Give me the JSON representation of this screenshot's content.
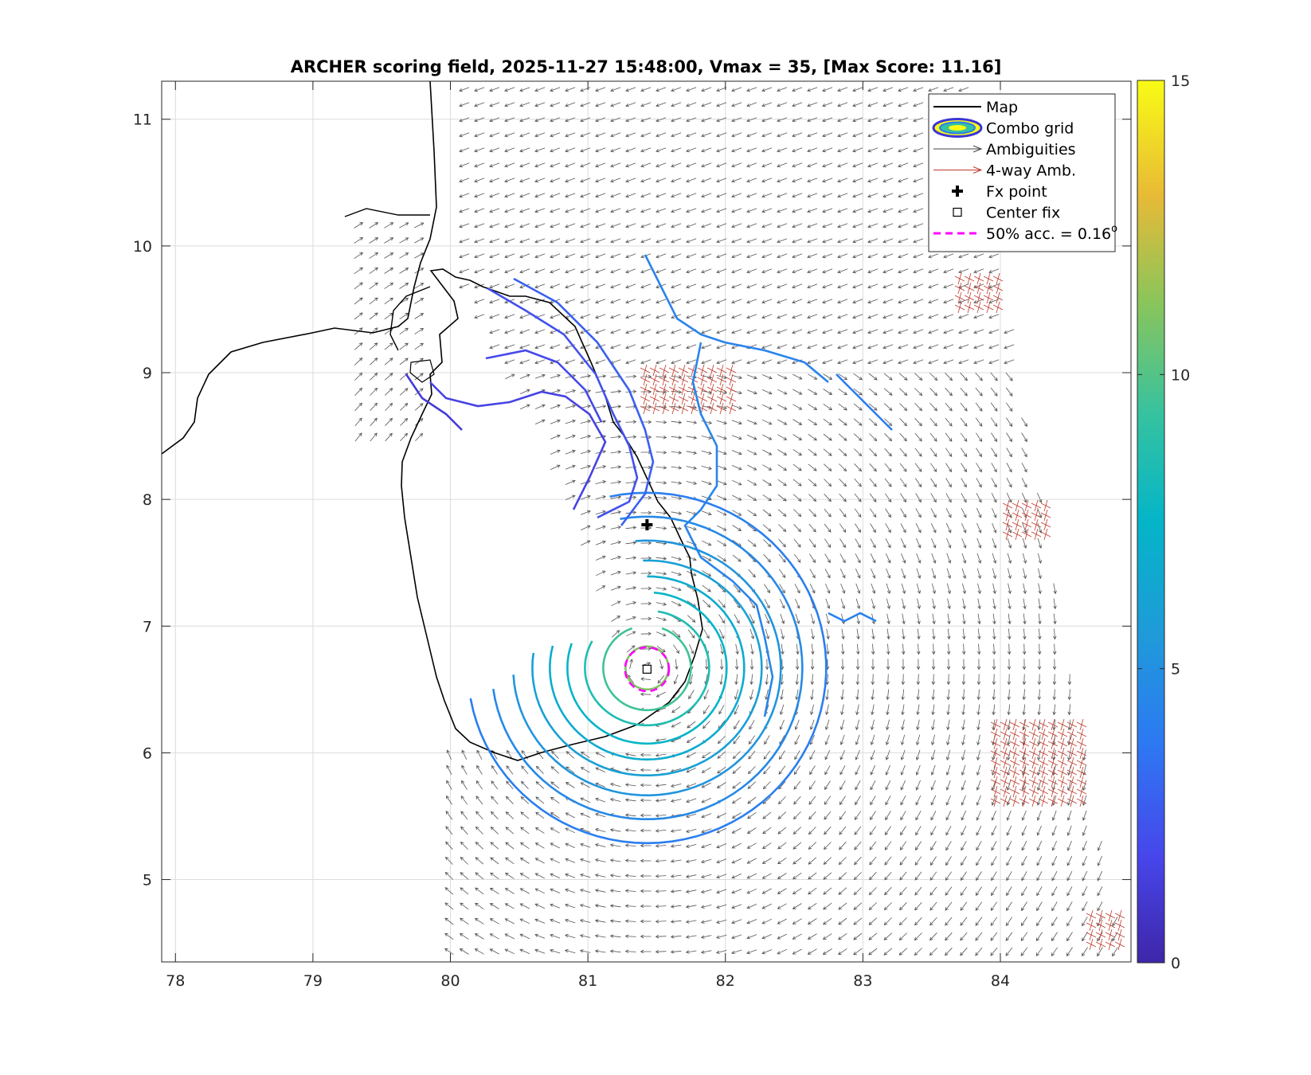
{
  "chart_data": {
    "type": "map",
    "title": "ARCHER scoring field, 2025-11-27 15:48:00, Vmax = 35, [Max Score: 11.16]",
    "xlim": [
      77.9,
      84.95
    ],
    "ylim": [
      4.35,
      11.3
    ],
    "x_ticks": [
      "78",
      "79",
      "80",
      "81",
      "82",
      "83",
      "84"
    ],
    "x_tick_values": [
      78,
      79,
      80,
      81,
      82,
      83,
      84
    ],
    "y_ticks": [
      "5",
      "6",
      "7",
      "8",
      "9",
      "10",
      "11"
    ],
    "y_tick_values": [
      5,
      6,
      7,
      8,
      9,
      10,
      11
    ],
    "grid": true,
    "legend": {
      "placement": "top-right",
      "entries": [
        {
          "label": "Map",
          "symbol": "line",
          "color": "#000000"
        },
        {
          "label": "Combo grid",
          "symbol": "ellipse",
          "color": "#3b34d6"
        },
        {
          "label": "Ambiguities",
          "symbol": "arrow",
          "color": "#444444"
        },
        {
          "label": "4-way Amb.",
          "symbol": "arrow",
          "color": "#c0392b"
        },
        {
          "label": "Fx point",
          "symbol": "plus",
          "color": "#000000"
        },
        {
          "label": "Center fix",
          "symbol": "square",
          "color": "#000000"
        },
        {
          "label": "50% acc. = 0.16",
          "superscript": "o",
          "symbol": "dashed",
          "color": "#ff00ff"
        }
      ]
    },
    "colorbar": {
      "ticks": [
        "0",
        "5",
        "10",
        "15"
      ],
      "tick_values": [
        0,
        5,
        10,
        15
      ],
      "range": [
        0,
        15
      ],
      "colormap": "parula"
    },
    "fx_point": {
      "lon": 81.43,
      "lat": 7.8
    },
    "center_fix": {
      "lon": 81.43,
      "lat": 6.66
    },
    "accuracy_radius_deg": 0.16,
    "max_score": 11.16,
    "contour_center": {
      "lon": 81.43,
      "lat": 6.67
    }
  }
}
